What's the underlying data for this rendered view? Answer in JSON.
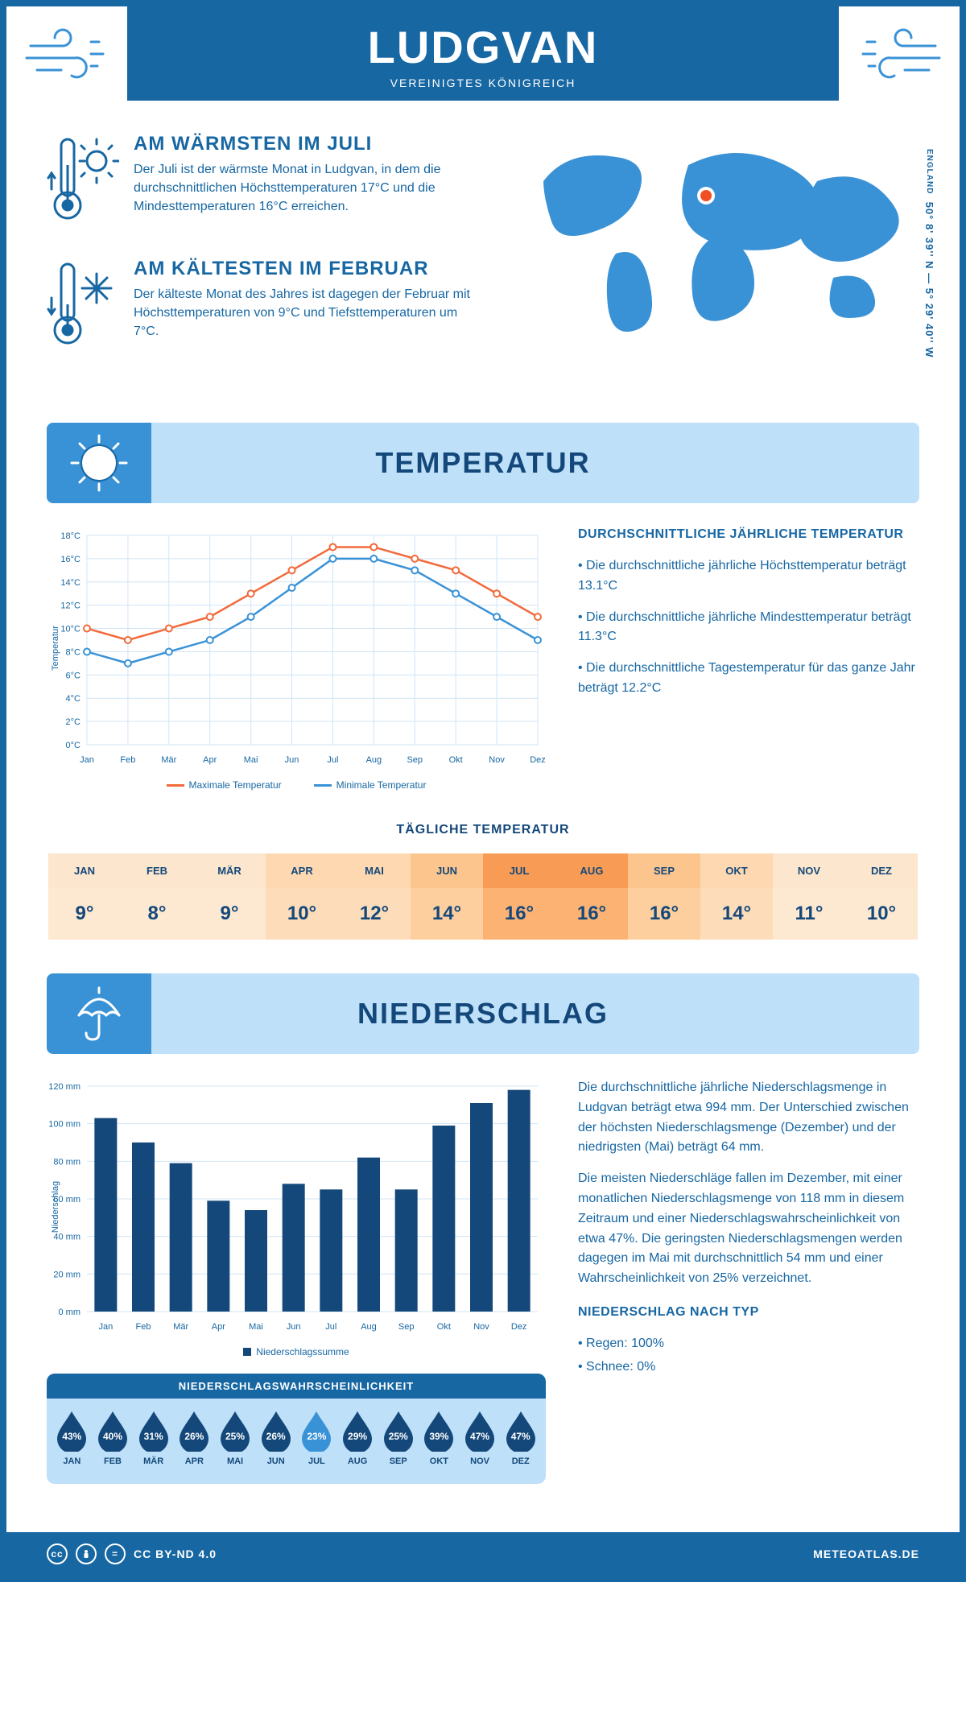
{
  "colors": {
    "primary": "#1767a3",
    "primary_dark": "#14487a",
    "light_blue": "#bee0f9",
    "mid_blue": "#3a92d6",
    "orange": "#f26a3b",
    "line_blue": "#3a92d6"
  },
  "header": {
    "title": "LUDGVAN",
    "subtitle": "VEREINIGTES KÖNIGREICH"
  },
  "coords": "50° 8' 39'' N — 5° 29' 40'' W",
  "coords_region": "ENGLAND",
  "facts": {
    "warm": {
      "title": "AM WÄRMSTEN IM JULI",
      "body": "Der Juli ist der wärmste Monat in Ludgvan, in dem die durchschnittlichen Höchsttemperaturen 17°C und die Mindesttemperaturen 16°C erreichen."
    },
    "cold": {
      "title": "AM KÄLTESTEN IM FEBRUAR",
      "body": "Der kälteste Monat des Jahres ist dagegen der Februar mit Höchsttemperaturen von 9°C und Tiefsttemperaturen um 7°C."
    }
  },
  "sections": {
    "temp": "TEMPERATUR",
    "precip": "NIEDERSCHLAG"
  },
  "temp_chart": {
    "type": "line",
    "y_label": "Temperatur",
    "months": [
      "Jan",
      "Feb",
      "Mär",
      "Apr",
      "Mai",
      "Jun",
      "Jul",
      "Aug",
      "Sep",
      "Okt",
      "Nov",
      "Dez"
    ],
    "y_min": 0,
    "y_max": 18,
    "y_step": 2,
    "series": [
      {
        "name": "Maximale Temperatur",
        "color": "#f26a3b",
        "values": [
          10,
          9,
          10,
          11,
          13,
          15,
          17,
          17,
          16,
          15,
          13,
          11
        ]
      },
      {
        "name": "Minimale Temperatur",
        "color": "#3a92d6",
        "values": [
          8,
          7,
          8,
          9,
          11,
          13.5,
          16,
          16,
          15,
          13,
          11,
          9
        ]
      }
    ],
    "grid_color": "#cfe5f6",
    "marker_r": 3
  },
  "temp_summary": {
    "title": "DURCHSCHNITTLICHE JÄHRLICHE TEMPERATUR",
    "bullets": [
      "• Die durchschnittliche jährliche Höchsttemperatur beträgt 13.1°C",
      "• Die durchschnittliche jährliche Mindesttemperatur beträgt 11.3°C",
      "• Die durchschnittliche Tagestemperatur für das ganze Jahr beträgt 12.2°C"
    ]
  },
  "daily_temp": {
    "title": "TÄGLICHE TEMPERATUR",
    "months": [
      "JAN",
      "FEB",
      "MÄR",
      "APR",
      "MAI",
      "JUN",
      "JUL",
      "AUG",
      "SEP",
      "OKT",
      "NOV",
      "DEZ"
    ],
    "values": [
      "9°",
      "8°",
      "9°",
      "10°",
      "12°",
      "14°",
      "16°",
      "16°",
      "16°",
      "14°",
      "11°",
      "10°"
    ],
    "cell_colors_head": [
      "#fce6cd",
      "#fce6cd",
      "#fce6cd",
      "#fdd8b0",
      "#fdd8b0",
      "#fcc58d",
      "#f79b55",
      "#f79b55",
      "#fcc58d",
      "#fdd8b0",
      "#fce6cd",
      "#fce6cd"
    ],
    "cell_colors_val": [
      "#fde9d2",
      "#fde9d2",
      "#fde9d2",
      "#fddcba",
      "#fddcba",
      "#fdcf9e",
      "#fbb273",
      "#fbb273",
      "#fdcf9e",
      "#fddcba",
      "#fde9d2",
      "#fde9d2"
    ],
    "head_text": "#14487a"
  },
  "precip_chart": {
    "type": "bar",
    "y_label": "Niederschlag",
    "months": [
      "Jan",
      "Feb",
      "Mär",
      "Apr",
      "Mai",
      "Jun",
      "Jul",
      "Aug",
      "Sep",
      "Okt",
      "Nov",
      "Dez"
    ],
    "values": [
      103,
      90,
      79,
      59,
      54,
      68,
      65,
      82,
      65,
      99,
      111,
      118
    ],
    "y_min": 0,
    "y_max": 120,
    "y_step": 20,
    "bar_color": "#14487a",
    "grid_color": "#cfe5f6",
    "legend": "Niederschlagssumme"
  },
  "precip_text": {
    "p1": "Die durchschnittliche jährliche Niederschlagsmenge in Ludgvan beträgt etwa 994 mm. Der Unterschied zwischen der höchsten Niederschlagsmenge (Dezember) und der niedrigsten (Mai) beträgt 64 mm.",
    "p2": "Die meisten Niederschläge fallen im Dezember, mit einer monatlichen Niederschlagsmenge von 118 mm in diesem Zeitraum und einer Niederschlagswahrscheinlichkeit von etwa 47%. Die geringsten Niederschlagsmengen werden dagegen im Mai mit durchschnittlich 54 mm und einer Wahrscheinlichkeit von 25% verzeichnet.",
    "type_title": "NIEDERSCHLAG NACH TYP",
    "type_items": [
      "• Regen: 100%",
      "• Schnee: 0%"
    ]
  },
  "precip_prob": {
    "title": "NIEDERSCHLAGSWAHRSCHEINLICHKEIT",
    "months": [
      "JAN",
      "FEB",
      "MÄR",
      "APR",
      "MAI",
      "JUN",
      "JUL",
      "AUG",
      "SEP",
      "OKT",
      "NOV",
      "DEZ"
    ],
    "values": [
      "43%",
      "40%",
      "31%",
      "26%",
      "25%",
      "26%",
      "23%",
      "29%",
      "25%",
      "39%",
      "47%",
      "47%"
    ],
    "min_index": 6,
    "drop_dark": "#14487a",
    "drop_light": "#3a92d6"
  },
  "footer": {
    "license": "CC BY-ND 4.0",
    "site": "METEOATLAS.DE"
  }
}
